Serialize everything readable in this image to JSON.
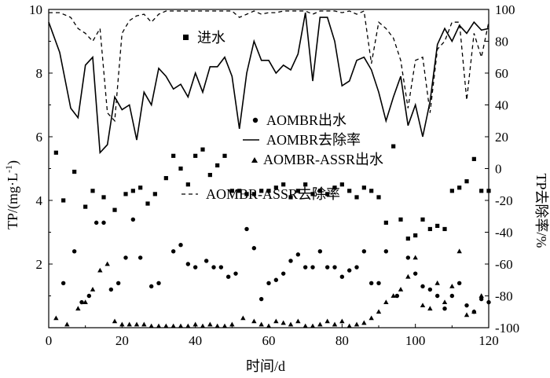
{
  "chart_data": {
    "type": "scatter",
    "xlabel": "时间/d",
    "ylabel_left": "TP/(mg·L",
    "ylabel_left_sup": "-1",
    "ylabel_left_close": ")",
    "ylabel_right": "TP去除率/%",
    "x_range": [
      0,
      120
    ],
    "x_ticks": [
      "0",
      "20",
      "40",
      "60",
      "80",
      "100",
      "120"
    ],
    "y_left_range": [
      0,
      10
    ],
    "y_left_ticks": [
      "2",
      "4",
      "6",
      "8",
      "10"
    ],
    "y_right_range": [
      -100,
      100
    ],
    "y_right_ticks": [
      "-100",
      "-80",
      "-60",
      "-40",
      "-20",
      "0",
      "20",
      "40",
      "60",
      "80",
      "100"
    ],
    "legend": {
      "influent": "进水",
      "aombr_effluent": "AOMBR出水",
      "aombr_removal": "AOMBR去除率",
      "assr_effluent": "AOMBR-ASSR出水",
      "assr_removal": "AOMBR-ASSR去除率"
    },
    "series": [
      {
        "name": "进水",
        "marker": "square",
        "axis": "left",
        "x": [
          2,
          4,
          7,
          10,
          12,
          15,
          18,
          21,
          23,
          25,
          27,
          29,
          32,
          34,
          36,
          38,
          40,
          42,
          44,
          46,
          48,
          50,
          52,
          54,
          56,
          58,
          60,
          62,
          64,
          66,
          68,
          70,
          72,
          74,
          76,
          78,
          80,
          82,
          84,
          86,
          88,
          90,
          92,
          94,
          96,
          98,
          100,
          102,
          104,
          106,
          108,
          110,
          112,
          114,
          116,
          118,
          120
        ],
        "y": [
          5.5,
          4.0,
          4.9,
          3.8,
          4.3,
          4.1,
          3.7,
          4.2,
          4.3,
          4.4,
          3.9,
          4.2,
          4.7,
          5.4,
          5.0,
          4.5,
          5.4,
          5.6,
          4.8,
          5.1,
          5.4,
          4.3,
          4.3,
          4.2,
          4.2,
          4.3,
          4.3,
          4.4,
          4.5,
          4.1,
          4.3,
          4.5,
          4.2,
          4.3,
          4.2,
          4.4,
          4.5,
          4.3,
          4.1,
          4.4,
          4.3,
          4.1,
          3.3,
          5.7,
          3.4,
          2.8,
          2.9,
          3.4,
          3.1,
          3.2,
          3.1,
          4.3,
          4.4,
          4.6,
          5.3,
          4.3,
          4.3
        ]
      },
      {
        "name": "AOMBR出水",
        "marker": "circle",
        "axis": "left",
        "x": [
          4,
          7,
          9,
          11,
          13,
          15,
          17,
          19,
          21,
          23,
          25,
          28,
          30,
          34,
          36,
          38,
          40,
          43,
          45,
          47,
          49,
          51,
          54,
          56,
          58,
          60,
          62,
          64,
          66,
          68,
          70,
          72,
          74,
          76,
          78,
          80,
          82,
          84,
          86,
          88,
          90,
          92,
          95,
          98,
          100,
          102,
          104,
          106,
          108,
          110,
          112,
          114,
          116,
          118,
          120
        ],
        "y": [
          1.4,
          2.4,
          0.8,
          1.0,
          3.3,
          3.3,
          1.2,
          1.4,
          2.2,
          3.4,
          2.2,
          1.3,
          1.4,
          2.4,
          2.6,
          2.0,
          1.9,
          2.1,
          1.9,
          1.9,
          1.6,
          1.7,
          3.1,
          2.5,
          0.9,
          1.4,
          1.5,
          1.7,
          2.1,
          2.3,
          1.9,
          1.9,
          2.4,
          1.9,
          1.9,
          1.6,
          1.8,
          1.9,
          2.4,
          1.4,
          1.4,
          2.4,
          1.0,
          2.2,
          1.7,
          1.3,
          1.2,
          1.0,
          0.6,
          1.0,
          1.4,
          0.7,
          0.5,
          0.9,
          0.8
        ]
      },
      {
        "name": "AOMBR-ASSR出水",
        "marker": "triangle",
        "axis": "left",
        "x": [
          2,
          5,
          8,
          10,
          12,
          14,
          16,
          18,
          20,
          22,
          24,
          26,
          28,
          30,
          32,
          34,
          36,
          38,
          40,
          42,
          44,
          46,
          48,
          50,
          53,
          56,
          58,
          60,
          62,
          64,
          66,
          68,
          70,
          72,
          74,
          76,
          78,
          80,
          82,
          84,
          86,
          88,
          90,
          92,
          94,
          96,
          98,
          100,
          102,
          104,
          106,
          108,
          110,
          112,
          114,
          116,
          118
        ],
        "y": [
          0.3,
          0.1,
          0.6,
          0.8,
          1.2,
          1.8,
          2.0,
          0.2,
          0.1,
          0.1,
          0.1,
          0.1,
          0.05,
          0.05,
          0.05,
          0.05,
          0.05,
          0.05,
          0.1,
          0.05,
          0.1,
          0.05,
          0.05,
          0.1,
          0.3,
          0.2,
          0.1,
          0.05,
          0.2,
          0.15,
          0.1,
          0.2,
          0.05,
          0.05,
          0.1,
          0.2,
          0.1,
          0.2,
          0.05,
          0.1,
          0.15,
          0.3,
          0.5,
          0.8,
          1.0,
          1.2,
          1.6,
          2.2,
          0.7,
          0.6,
          1.4,
          0.8,
          1.3,
          2.4,
          0.4,
          0.5,
          1.0
        ]
      },
      {
        "name": "AOMBR去除率",
        "style": "solid",
        "axis": "right",
        "x": [
          0,
          3,
          6,
          8,
          10,
          12,
          14,
          16,
          18,
          20,
          22,
          24,
          26,
          28,
          30,
          32,
          34,
          36,
          38,
          40,
          42,
          44,
          46,
          48,
          50,
          52,
          54,
          56,
          58,
          60,
          62,
          64,
          66,
          68,
          70,
          72,
          74,
          76,
          78,
          80,
          82,
          84,
          86,
          88,
          90,
          92,
          94,
          96,
          98,
          100,
          102,
          104,
          106,
          108,
          110,
          112,
          114,
          116,
          118,
          120
        ],
        "y": [
          92,
          73,
          38,
          32,
          65,
          70,
          10,
          15,
          45,
          37,
          40,
          18,
          48,
          40,
          63,
          58,
          50,
          53,
          45,
          60,
          48,
          64,
          64,
          70,
          58,
          25,
          60,
          80,
          68,
          68,
          60,
          65,
          62,
          72,
          98,
          55,
          95,
          95,
          80,
          52,
          55,
          68,
          70,
          62,
          48,
          30,
          45,
          58,
          27,
          40,
          20,
          42,
          78,
          88,
          80,
          90,
          85,
          92,
          87,
          88
        ]
      },
      {
        "name": "AOMBR-ASSR去除率",
        "style": "dashed",
        "axis": "right",
        "x": [
          0,
          3,
          6,
          8,
          10,
          12,
          14,
          16,
          18,
          20,
          22,
          24,
          26,
          28,
          30,
          32,
          34,
          36,
          38,
          40,
          42,
          44,
          46,
          48,
          50,
          52,
          54,
          56,
          58,
          60,
          62,
          64,
          66,
          68,
          70,
          72,
          74,
          76,
          78,
          80,
          82,
          84,
          86,
          88,
          90,
          92,
          94,
          96,
          98,
          100,
          102,
          104,
          106,
          108,
          110,
          112,
          114,
          116,
          118,
          120
        ],
        "y": [
          98,
          98,
          95,
          88,
          85,
          80,
          88,
          35,
          30,
          85,
          93,
          96,
          97,
          92,
          97,
          99,
          99,
          99,
          99,
          99,
          99,
          99,
          99,
          99,
          99,
          95,
          97,
          99,
          97,
          98,
          98,
          99,
          99,
          99,
          99,
          97,
          99,
          99,
          99,
          98,
          99,
          97,
          99,
          66,
          92,
          88,
          82,
          68,
          38,
          68,
          70,
          35,
          75,
          80,
          92,
          92,
          43,
          85,
          70,
          92
        ]
      }
    ]
  }
}
